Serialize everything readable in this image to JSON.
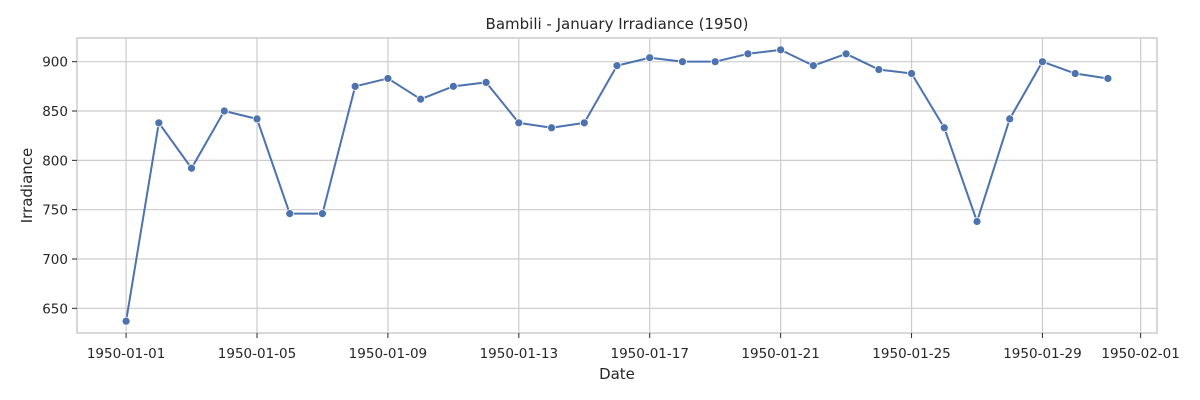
{
  "chart_data": {
    "type": "line",
    "title": "Bambili - January Irradiance (1950)",
    "xlabel": "Date",
    "ylabel": "Irradiance",
    "grid": true,
    "x": [
      "1950-01-01",
      "1950-01-02",
      "1950-01-03",
      "1950-01-04",
      "1950-01-05",
      "1950-01-06",
      "1950-01-07",
      "1950-01-08",
      "1950-01-09",
      "1950-01-10",
      "1950-01-11",
      "1950-01-12",
      "1950-01-13",
      "1950-01-14",
      "1950-01-15",
      "1950-01-16",
      "1950-01-17",
      "1950-01-18",
      "1950-01-19",
      "1950-01-20",
      "1950-01-21",
      "1950-01-22",
      "1950-01-23",
      "1950-01-24",
      "1950-01-25",
      "1950-01-26",
      "1950-01-27",
      "1950-01-28",
      "1950-01-29",
      "1950-01-30",
      "1950-01-31"
    ],
    "series": [
      {
        "name": "",
        "color": "#4c72b0",
        "values": [
          637,
          838,
          792,
          850,
          842,
          746,
          746,
          875,
          883,
          862,
          875,
          879,
          838,
          833,
          838,
          896,
          904,
          900,
          900,
          908,
          912,
          896,
          908,
          892,
          888,
          833,
          738,
          842,
          900,
          888,
          883
        ]
      }
    ],
    "x_ticks": [
      "1950-01-01",
      "1950-01-05",
      "1950-01-09",
      "1950-01-13",
      "1950-01-17",
      "1950-01-21",
      "1950-01-25",
      "1950-01-29",
      "1950-02-01"
    ],
    "xlim": [
      "1949-12-30.5",
      "1950-02-01.5"
    ],
    "y_ticks": [
      650,
      700,
      750,
      800,
      850,
      900
    ],
    "ylim": [
      625,
      924
    ]
  }
}
